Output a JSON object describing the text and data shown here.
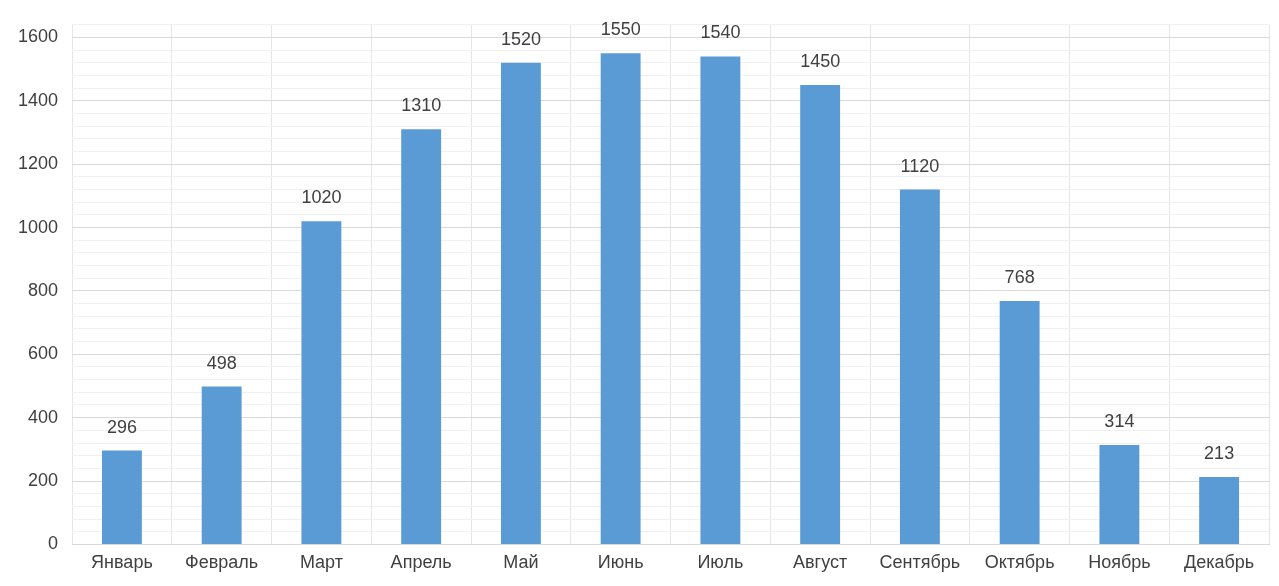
{
  "chart_data": {
    "type": "bar",
    "categories": [
      "Январь",
      "Февраль",
      "Март",
      "Апрель",
      "Май",
      "Июнь",
      "Июль",
      "Август",
      "Сентябрь",
      "Октябрь",
      "Ноябрь",
      "Декабрь"
    ],
    "values": [
      296,
      498,
      1020,
      1310,
      1520,
      1550,
      1540,
      1450,
      1120,
      768,
      314,
      213
    ],
    "color": "#5b9bd5",
    "ylim": [
      0,
      1640
    ],
    "yticks": [
      0,
      {
        "value": 40,
        "label": null
      },
      {
        "value": 80,
        "label": null
      },
      {
        "value": 120,
        "label": null
      },
      {
        "value": 160,
        "label": null
      },
      200,
      {
        "value": 240,
        "label": null
      },
      {
        "value": 280,
        "label": null
      },
      {
        "value": 320,
        "label": null
      },
      {
        "value": 360,
        "label": null
      },
      400,
      {
        "value": 440,
        "label": null
      },
      {
        "value": 480,
        "label": null
      },
      {
        "value": 520,
        "label": null
      },
      {
        "value": 560,
        "label": null
      },
      600,
      {
        "value": 640,
        "label": null
      },
      {
        "value": 680,
        "label": null
      },
      {
        "value": 720,
        "label": null
      },
      {
        "value": 760,
        "label": null
      },
      800,
      {
        "value": 840,
        "label": null
      },
      {
        "value": 880,
        "label": null
      },
      {
        "value": 920,
        "label": null
      },
      {
        "value": 960,
        "label": null
      },
      1000,
      {
        "value": 1040,
        "label": null
      },
      {
        "value": 1080,
        "label": null
      },
      {
        "value": 1120,
        "label": null
      },
      {
        "value": 1160,
        "label": null
      },
      1200,
      {
        "value": 1240,
        "label": null
      },
      {
        "value": 1280,
        "label": null
      },
      {
        "value": 1320,
        "label": null
      },
      {
        "value": 1360,
        "label": null
      },
      1400,
      {
        "value": 1440,
        "label": null
      },
      {
        "value": 1480,
        "label": null
      },
      {
        "value": 1520,
        "label": null
      },
      {
        "value": 1560,
        "label": null
      },
      1600,
      {
        "value": 1640,
        "label": null
      }
    ],
    "grid": true,
    "data_labels": true
  }
}
